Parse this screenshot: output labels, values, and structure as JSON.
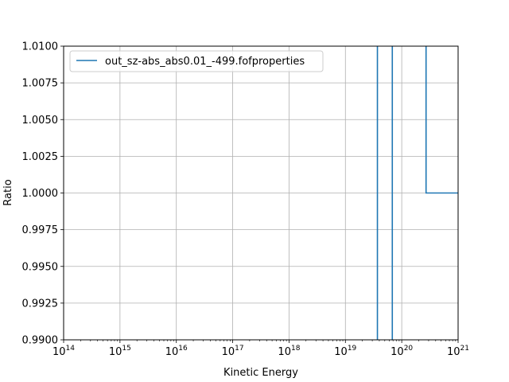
{
  "chart_data": {
    "type": "line",
    "step": true,
    "xscale": "log",
    "xlabel": "Kinetic Energy",
    "ylabel": "Ratio",
    "xlim": [
      100000000000000.0,
      1e+21
    ],
    "ylim": [
      0.99,
      1.01
    ],
    "grid": true,
    "legend_position": "top-left",
    "series_color": "#1f77b4",
    "x_tick_exponents": [
      "14",
      "15",
      "16",
      "17",
      "18",
      "19",
      "20",
      "21"
    ],
    "x_tick_base": "10",
    "y_ticks": [
      "0.9900",
      "0.9925",
      "0.9950",
      "0.9975",
      "1.0000",
      "1.0025",
      "1.0050",
      "1.0075",
      "1.0100"
    ],
    "series": [
      {
        "name": "out_sz-abs_abs0.01_-499.fofproperties",
        "segments": [
          [
            [
              3.7e+19,
              0.99
            ],
            [
              3.7e+19,
              1.02
            ]
          ],
          [
            [
              6.8e+19,
              0.99
            ],
            [
              6.8e+19,
              1.02
            ]
          ],
          [
            [
              2.7e+20,
              1.02
            ],
            [
              2.7e+20,
              1.0
            ],
            [
              1e+21,
              1.0
            ]
          ]
        ]
      }
    ]
  }
}
